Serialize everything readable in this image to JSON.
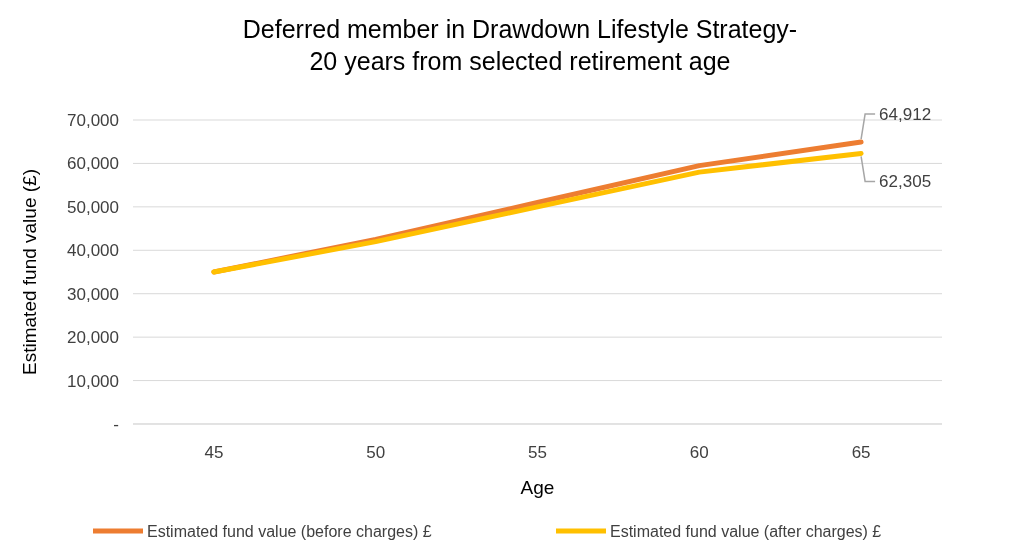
{
  "chart_data": {
    "type": "line",
    "title": "Deferred member in Drawdown Lifestyle Strategy-\n20 years from selected retirement age",
    "xlabel": "Age",
    "ylabel": "Estimated fund value (£)",
    "categories": [
      "45",
      "50",
      "55",
      "60",
      "65"
    ],
    "series": [
      {
        "name": "Estimated fund value (before charges) £",
        "color": "#ed7d31",
        "values": [
          35000,
          42500,
          51000,
          59500,
          64912
        ],
        "value_labels": [
          null,
          null,
          null,
          null,
          "64,912"
        ]
      },
      {
        "name": "Estimated fund value (after charges) £",
        "color": "#ffc000",
        "values": [
          35000,
          42000,
          50000,
          58000,
          62305
        ],
        "value_labels": [
          null,
          null,
          null,
          null,
          "62,305"
        ]
      }
    ],
    "ylim": [
      0,
      70000
    ],
    "yticks": [
      {
        "value": 0,
        "label": "-"
      },
      {
        "value": 10000,
        "label": "10,000"
      },
      {
        "value": 20000,
        "label": "20,000"
      },
      {
        "value": 30000,
        "label": "30,000"
      },
      {
        "value": 40000,
        "label": "40,000"
      },
      {
        "value": 50000,
        "label": "50,000"
      },
      {
        "value": 60000,
        "label": "60,000"
      },
      {
        "value": 70000,
        "label": "70,000"
      }
    ],
    "grid": "y",
    "legend": "bottom",
    "marker": "none",
    "line_style": "solid"
  }
}
